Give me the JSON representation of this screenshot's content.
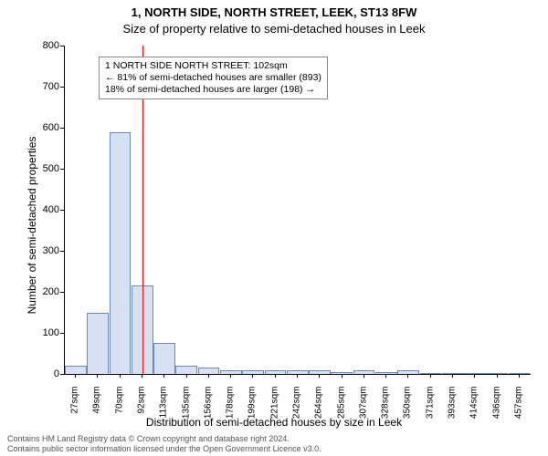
{
  "title": {
    "line1": "1, NORTH SIDE, NORTH STREET, LEEK, ST13 8FW",
    "line2": "Size of property relative to semi-detached houses in Leek"
  },
  "ylabel": "Number of semi-detached properties",
  "xlabel": "Distribution of semi-detached houses by size in Leek",
  "chart": {
    "type": "histogram",
    "ylim": [
      0,
      800
    ],
    "ytick_step": 100,
    "x_unit": "sqm",
    "x_start": 27,
    "x_step": 21.5,
    "x_count": 21,
    "bar_values": [
      20,
      150,
      590,
      215,
      75,
      20,
      15,
      10,
      10,
      8,
      8,
      10,
      5,
      10,
      5,
      10,
      3,
      3,
      0,
      2,
      2
    ],
    "bar_color": "#d6e2f3",
    "bar_border": "#6b89bd",
    "plot_bg": "#ffffff",
    "axis_color": "#000000",
    "marker": {
      "value_label": "102sqm",
      "position_index": 3.5,
      "color": "#ff0000",
      "width": 1
    }
  },
  "infobox": {
    "line1": "1 NORTH SIDE NORTH STREET: 102sqm",
    "line2": "← 81% of semi-detached houses are smaller (893)",
    "line3": "18% of semi-detached houses are larger (198) →"
  },
  "footer": {
    "line1": "Contains HM Land Registry data © Crown copyright and database right 2024.",
    "line2": "Contains public sector information licensed under the Open Government Licence v3.0."
  },
  "fonts": {
    "title": 13,
    "axis_label": 12,
    "tick": 11,
    "xtick": 10,
    "infobox": 10.5,
    "footer": 9
  }
}
